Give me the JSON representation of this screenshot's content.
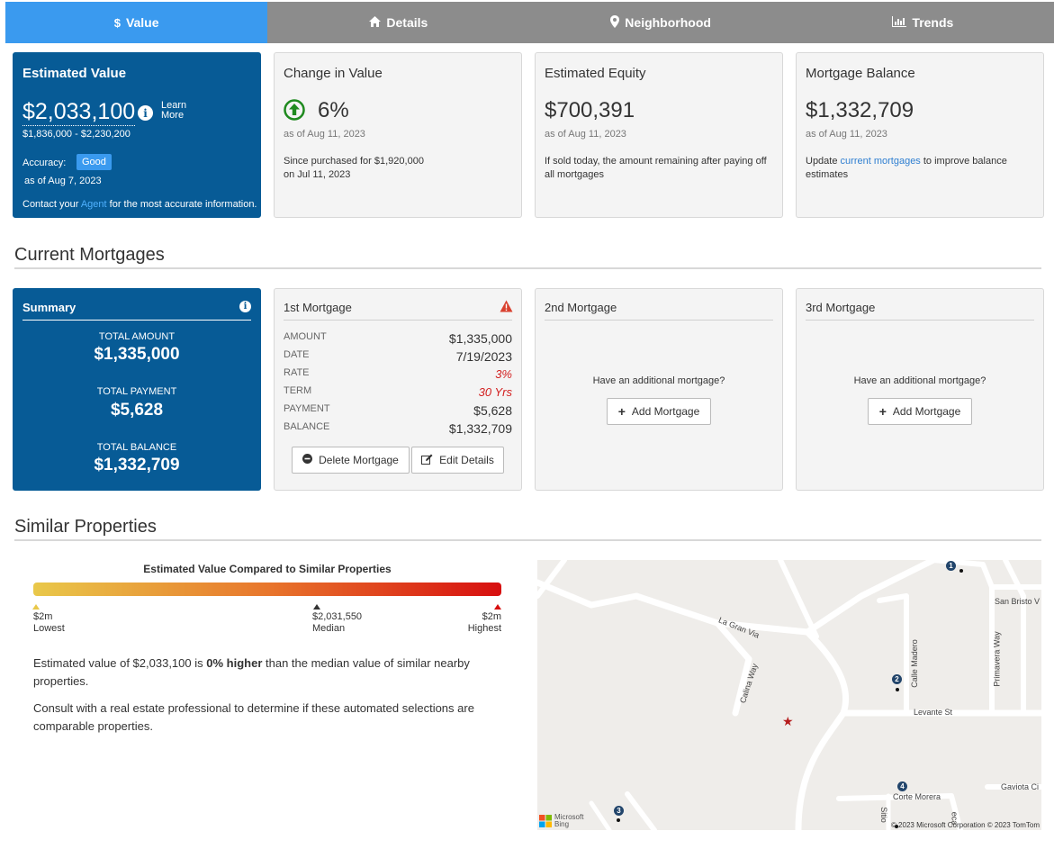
{
  "tabs": [
    {
      "label": "Value",
      "icon": "dollar-icon"
    },
    {
      "label": "Details",
      "icon": "home-icon"
    },
    {
      "label": "Neighborhood",
      "icon": "map-marker-icon"
    },
    {
      "label": "Trends",
      "icon": "bar-chart-icon"
    }
  ],
  "estimated_value": {
    "title": "Estimated Value",
    "value": "$2,033,100",
    "learn_more": "Learn More",
    "range": "$1,836,000 - $2,230,200",
    "accuracy_label": "Accuracy:",
    "accuracy_badge": "Good",
    "as_of": "as of Aug 7, 2023",
    "contact_prefix": "Contact your",
    "contact_link": "Agent",
    "contact_suffix": "for the most accurate information."
  },
  "change_in_value": {
    "title": "Change in Value",
    "value": "6%",
    "as_of": "as of Aug 11, 2023",
    "desc_line1": "Since purchased for $1,920,000",
    "desc_line2": "on Jul 11, 2023"
  },
  "estimated_equity": {
    "title": "Estimated Equity",
    "value": "$700,391",
    "as_of": "as of Aug 11, 2023",
    "desc": "If sold today, the amount remaining after paying off all mortgages"
  },
  "mortgage_balance": {
    "title": "Mortgage Balance",
    "value": "$1,332,709",
    "as_of": "as of Aug 11, 2023",
    "desc_prefix": "Update",
    "desc_link": "current mortgages",
    "desc_suffix": "to improve balance estimates"
  },
  "current_mortgages": {
    "section_title": "Current Mortgages",
    "summary": {
      "title": "Summary",
      "total_amount_label": "TOTAL AMOUNT",
      "total_amount": "$1,335,000",
      "total_payment_label": "TOTAL PAYMENT",
      "total_payment": "$5,628",
      "total_balance_label": "TOTAL BALANCE",
      "total_balance": "$1,332,709"
    },
    "first": {
      "title": "1st Mortgage",
      "rows": [
        {
          "label": "AMOUNT",
          "value": "$1,335,000"
        },
        {
          "label": "DATE",
          "value": "7/19/2023"
        },
        {
          "label": "RATE",
          "value": "3%"
        },
        {
          "label": "TERM",
          "value": "30 Yrs"
        },
        {
          "label": "PAYMENT",
          "value": "$5,628"
        },
        {
          "label": "BALANCE",
          "value": "$1,332,709"
        }
      ],
      "delete_label": "Delete Mortgage",
      "edit_label": "Edit Details"
    },
    "second": {
      "title": "2nd Mortgage",
      "prompt": "Have an additional mortgage?",
      "button": "Add Mortgage"
    },
    "third": {
      "title": "3rd Mortgage",
      "prompt": "Have an additional mortgage?",
      "button": "Add Mortgage"
    }
  },
  "similar_properties": {
    "section_title": "Similar Properties",
    "chart_title": "Estimated Value Compared to Similar Properties",
    "lowest_value": "$2m",
    "lowest_label": "Lowest",
    "median_value": "$2,031,550",
    "median_label": "Median",
    "highest_value": "$2m",
    "highest_label": "Highest",
    "para1_prefix": "Estimated value of $2,033,100 is",
    "para1_bold": "0% higher",
    "para1_suffix": "than the median value of similar nearby properties.",
    "para2": "Consult with a real estate professional to determine if these automated selections are comparable properties.",
    "colors": {
      "gradient_start": "#e9c84a",
      "gradient_mid": "#e8762c",
      "gradient_end": "#d70f0f"
    }
  },
  "map": {
    "streets": [
      "La Gran Via",
      "Calina Way",
      "Calle Madero",
      "Primavera Way",
      "Levante St",
      "San Bristo V",
      "Corte Morera",
      "Gaviota Ci",
      "Sitio",
      "eca"
    ],
    "markers": [
      "1",
      "2",
      "3",
      "4"
    ],
    "brand_line1": "Microsoft",
    "brand_line2": "Bing",
    "copyright": "© 2023 Microsoft Corporation © 2023 TomTom"
  }
}
